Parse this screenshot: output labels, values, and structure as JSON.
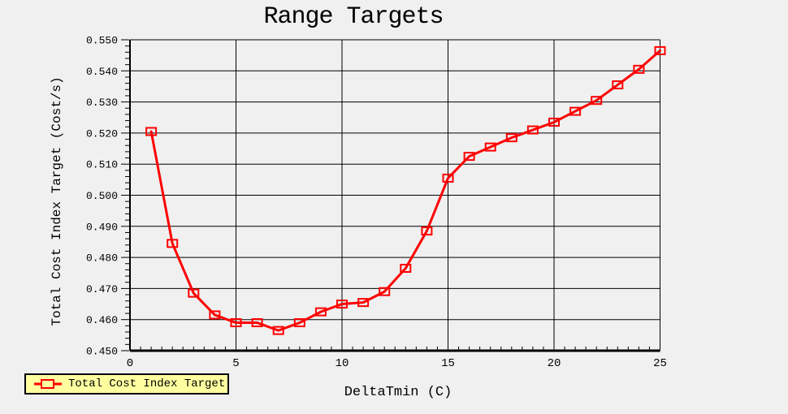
{
  "window": {
    "background": "#f0f0f0"
  },
  "title": "Range Targets",
  "legend": {
    "label": "Total Cost Index Target",
    "marker": "red-open-square",
    "background": "#ffffa0",
    "border_color": "#000000"
  },
  "chart_data": {
    "type": "line",
    "title": "Range Targets",
    "xlabel": "DeltaTmin (C)",
    "ylabel": "Total Cost Index Target (Cost/s)",
    "xlim": [
      0,
      25
    ],
    "ylim": [
      0.45,
      0.55
    ],
    "x_major_ticks": [
      0,
      5,
      10,
      15,
      20,
      25
    ],
    "x_minor_step": 0.5,
    "y_major_step": 0.01,
    "y_minor_step": 0.002,
    "y_tick_decimals": 3,
    "grid": true,
    "grid_color": "#000000",
    "legend_position": "bottom-left",
    "series": [
      {
        "name": "Total Cost Index Target",
        "color": "#ff0000",
        "marker": "open-square",
        "x": [
          1,
          2,
          3,
          4,
          5,
          6,
          7,
          8,
          9,
          10,
          11,
          12,
          13,
          14,
          15,
          16,
          17,
          18,
          19,
          20,
          21,
          22,
          23,
          24,
          25
        ],
        "y": [
          0.5205,
          0.4845,
          0.4685,
          0.4615,
          0.459,
          0.459,
          0.4565,
          0.459,
          0.4625,
          0.465,
          0.4655,
          0.469,
          0.4765,
          0.4885,
          0.5055,
          0.5125,
          0.5155,
          0.5185,
          0.521,
          0.5235,
          0.527,
          0.5305,
          0.5355,
          0.5405,
          0.5465
        ]
      }
    ]
  }
}
